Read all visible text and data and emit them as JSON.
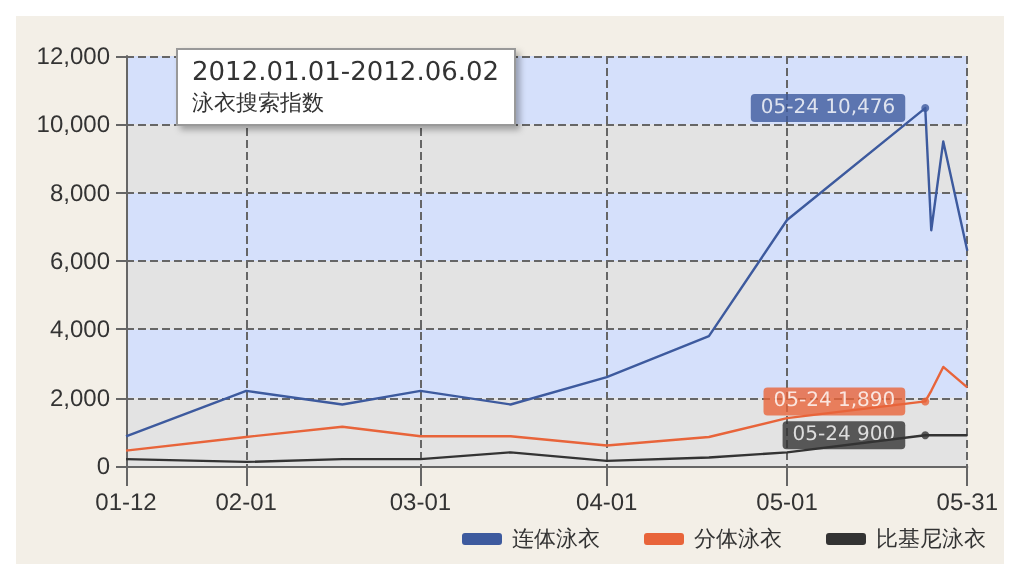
{
  "chart_data": {
    "type": "line",
    "title": "2012.01.01-2012.06.02",
    "subtitle": "泳衣搜索指数",
    "x": [
      "2012-01-12",
      "2012-02-01",
      "2012-02-17",
      "2012-03-01",
      "2012-03-16",
      "2012-04-01",
      "2012-04-18",
      "2012-05-01",
      "2012-05-24",
      "2012-05-25",
      "2012-05-27",
      "2012-05-31"
    ],
    "series": [
      {
        "name": "连体泳衣",
        "color": "#3d5a9e",
        "values": [
          870,
          2200,
          1800,
          2200,
          1800,
          2600,
          3800,
          7200,
          10476,
          6900,
          9500,
          6300
        ]
      },
      {
        "name": "分体泳衣",
        "color": "#e8643a",
        "values": [
          450,
          850,
          1150,
          870,
          870,
          600,
          850,
          1400,
          1890,
          2200,
          2900,
          2300
        ]
      },
      {
        "name": "比基尼泳衣",
        "color": "#333333",
        "values": [
          200,
          120,
          200,
          200,
          400,
          150,
          250,
          400,
          900,
          900,
          900,
          900
        ]
      }
    ],
    "annotations": [
      {
        "text": "05-24 10,476",
        "x": "2012-05-24",
        "y": 10476
      },
      {
        "text": "05-24 1,890",
        "x": "2012-05-24",
        "y": 1890
      },
      {
        "text": "05-24 900",
        "x": "2012-05-24",
        "y": 900
      }
    ],
    "xlim": [
      "2012-01-12",
      "2012-05-31"
    ],
    "xticks": [
      {
        "value": "2012-01-12",
        "label": "01-12"
      },
      {
        "value": "2012-02-01",
        "label": "02-01"
      },
      {
        "value": "2012-03-01",
        "label": "03-01"
      },
      {
        "value": "2012-04-01",
        "label": "04-01"
      },
      {
        "value": "2012-05-01",
        "label": "05-01"
      },
      {
        "value": "2012-05-31",
        "label": "05-31"
      }
    ],
    "ylim": [
      0,
      12000
    ],
    "yticks": [
      0,
      {
        "value": 2000,
        "label": "2,000"
      },
      {
        "value": 4000,
        "label": "4,000"
      },
      {
        "value": 6000,
        "label": "6,000"
      },
      {
        "value": 8000,
        "label": "8,000"
      },
      {
        "value": 10000,
        "label": "10,000"
      },
      {
        "value": 12000,
        "label": "12,000"
      }
    ],
    "grid": true,
    "legend": "bottom right",
    "marker": "none",
    "line_style": "solid"
  }
}
